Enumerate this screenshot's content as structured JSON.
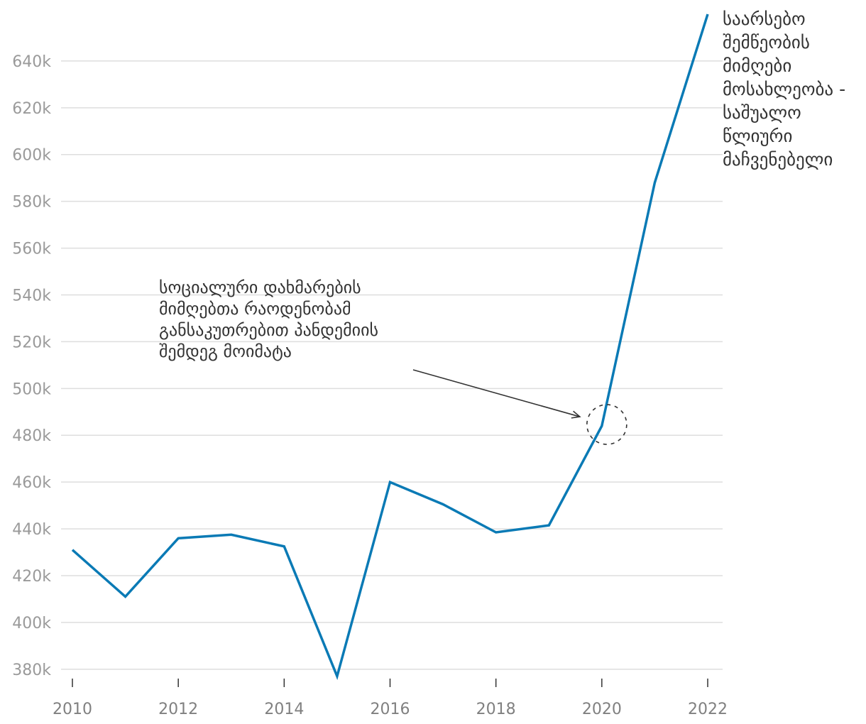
{
  "chart_data": {
    "type": "line",
    "x": [
      2010,
      2011,
      2012,
      2013,
      2014,
      2015,
      2016,
      2017,
      2018,
      2019,
      2020,
      2021,
      2022
    ],
    "series": [
      {
        "name": "საარსებო შემწეობის მიმღები მოსახლეობა - საშუალო წლიური მაჩვენებელი",
        "values": [
          431000,
          411000,
          436000,
          437500,
          432500,
          377000,
          460000,
          450500,
          438500,
          441500,
          484000,
          588000,
          660000
        ],
        "color": "#0a7ab5"
      }
    ],
    "x_ticks": [
      "2010",
      "2012",
      "2014",
      "2016",
      "2018",
      "2020",
      "2022"
    ],
    "y_ticks": [
      "380k",
      "400k",
      "420k",
      "440k",
      "460k",
      "480k",
      "500k",
      "520k",
      "540k",
      "560k",
      "580k",
      "600k",
      "620k",
      "640k"
    ],
    "y_tick_values": [
      380000,
      400000,
      420000,
      440000,
      460000,
      480000,
      500000,
      520000,
      540000,
      560000,
      580000,
      600000,
      620000,
      640000
    ],
    "xlim": [
      2010,
      2022
    ],
    "ylim": [
      376000,
      660000
    ],
    "grid": true,
    "annotation": {
      "text": "სოციალური დახმარების მიმღებთა რაოდენობამ განსაკუთრებით პანდემიის შემდეგ მოიმატა",
      "target_x": 2020,
      "target_y": 484000
    },
    "title": "",
    "xlabel": "",
    "ylabel": ""
  }
}
